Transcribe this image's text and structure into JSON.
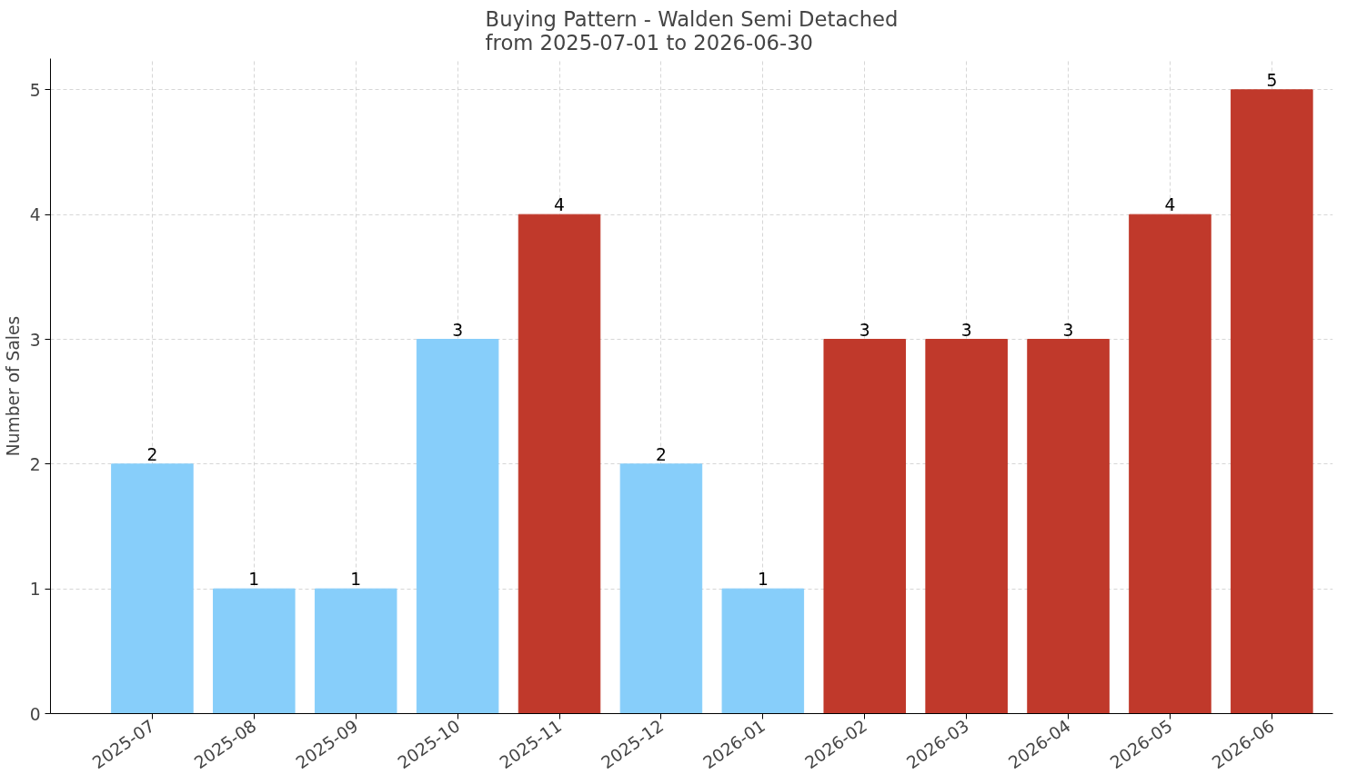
{
  "chart_data": {
    "type": "bar",
    "title": "Buying Pattern - Walden Semi Detached\nfrom 2025-07-01 to 2026-06-30",
    "ylabel": "Number of Sales",
    "categories": [
      "2025-07",
      "2025-08",
      "2025-09",
      "2025-10",
      "2025-11",
      "2025-12",
      "2026-01",
      "2026-02",
      "2026-03",
      "2026-04",
      "2026-05",
      "2026-06"
    ],
    "values": [
      2,
      1,
      1,
      3,
      4,
      2,
      1,
      3,
      3,
      3,
      4,
      5
    ],
    "colors": [
      "#87cefa",
      "#87cefa",
      "#87cefa",
      "#87cefa",
      "#c0392b",
      "#87cefa",
      "#87cefa",
      "#c0392b",
      "#c0392b",
      "#c0392b",
      "#c0392b",
      "#c0392b"
    ],
    "ylim": [
      0,
      5.25
    ],
    "yticks": [
      0,
      1,
      2,
      3,
      4,
      5
    ],
    "grid": true,
    "data_labels": true
  }
}
